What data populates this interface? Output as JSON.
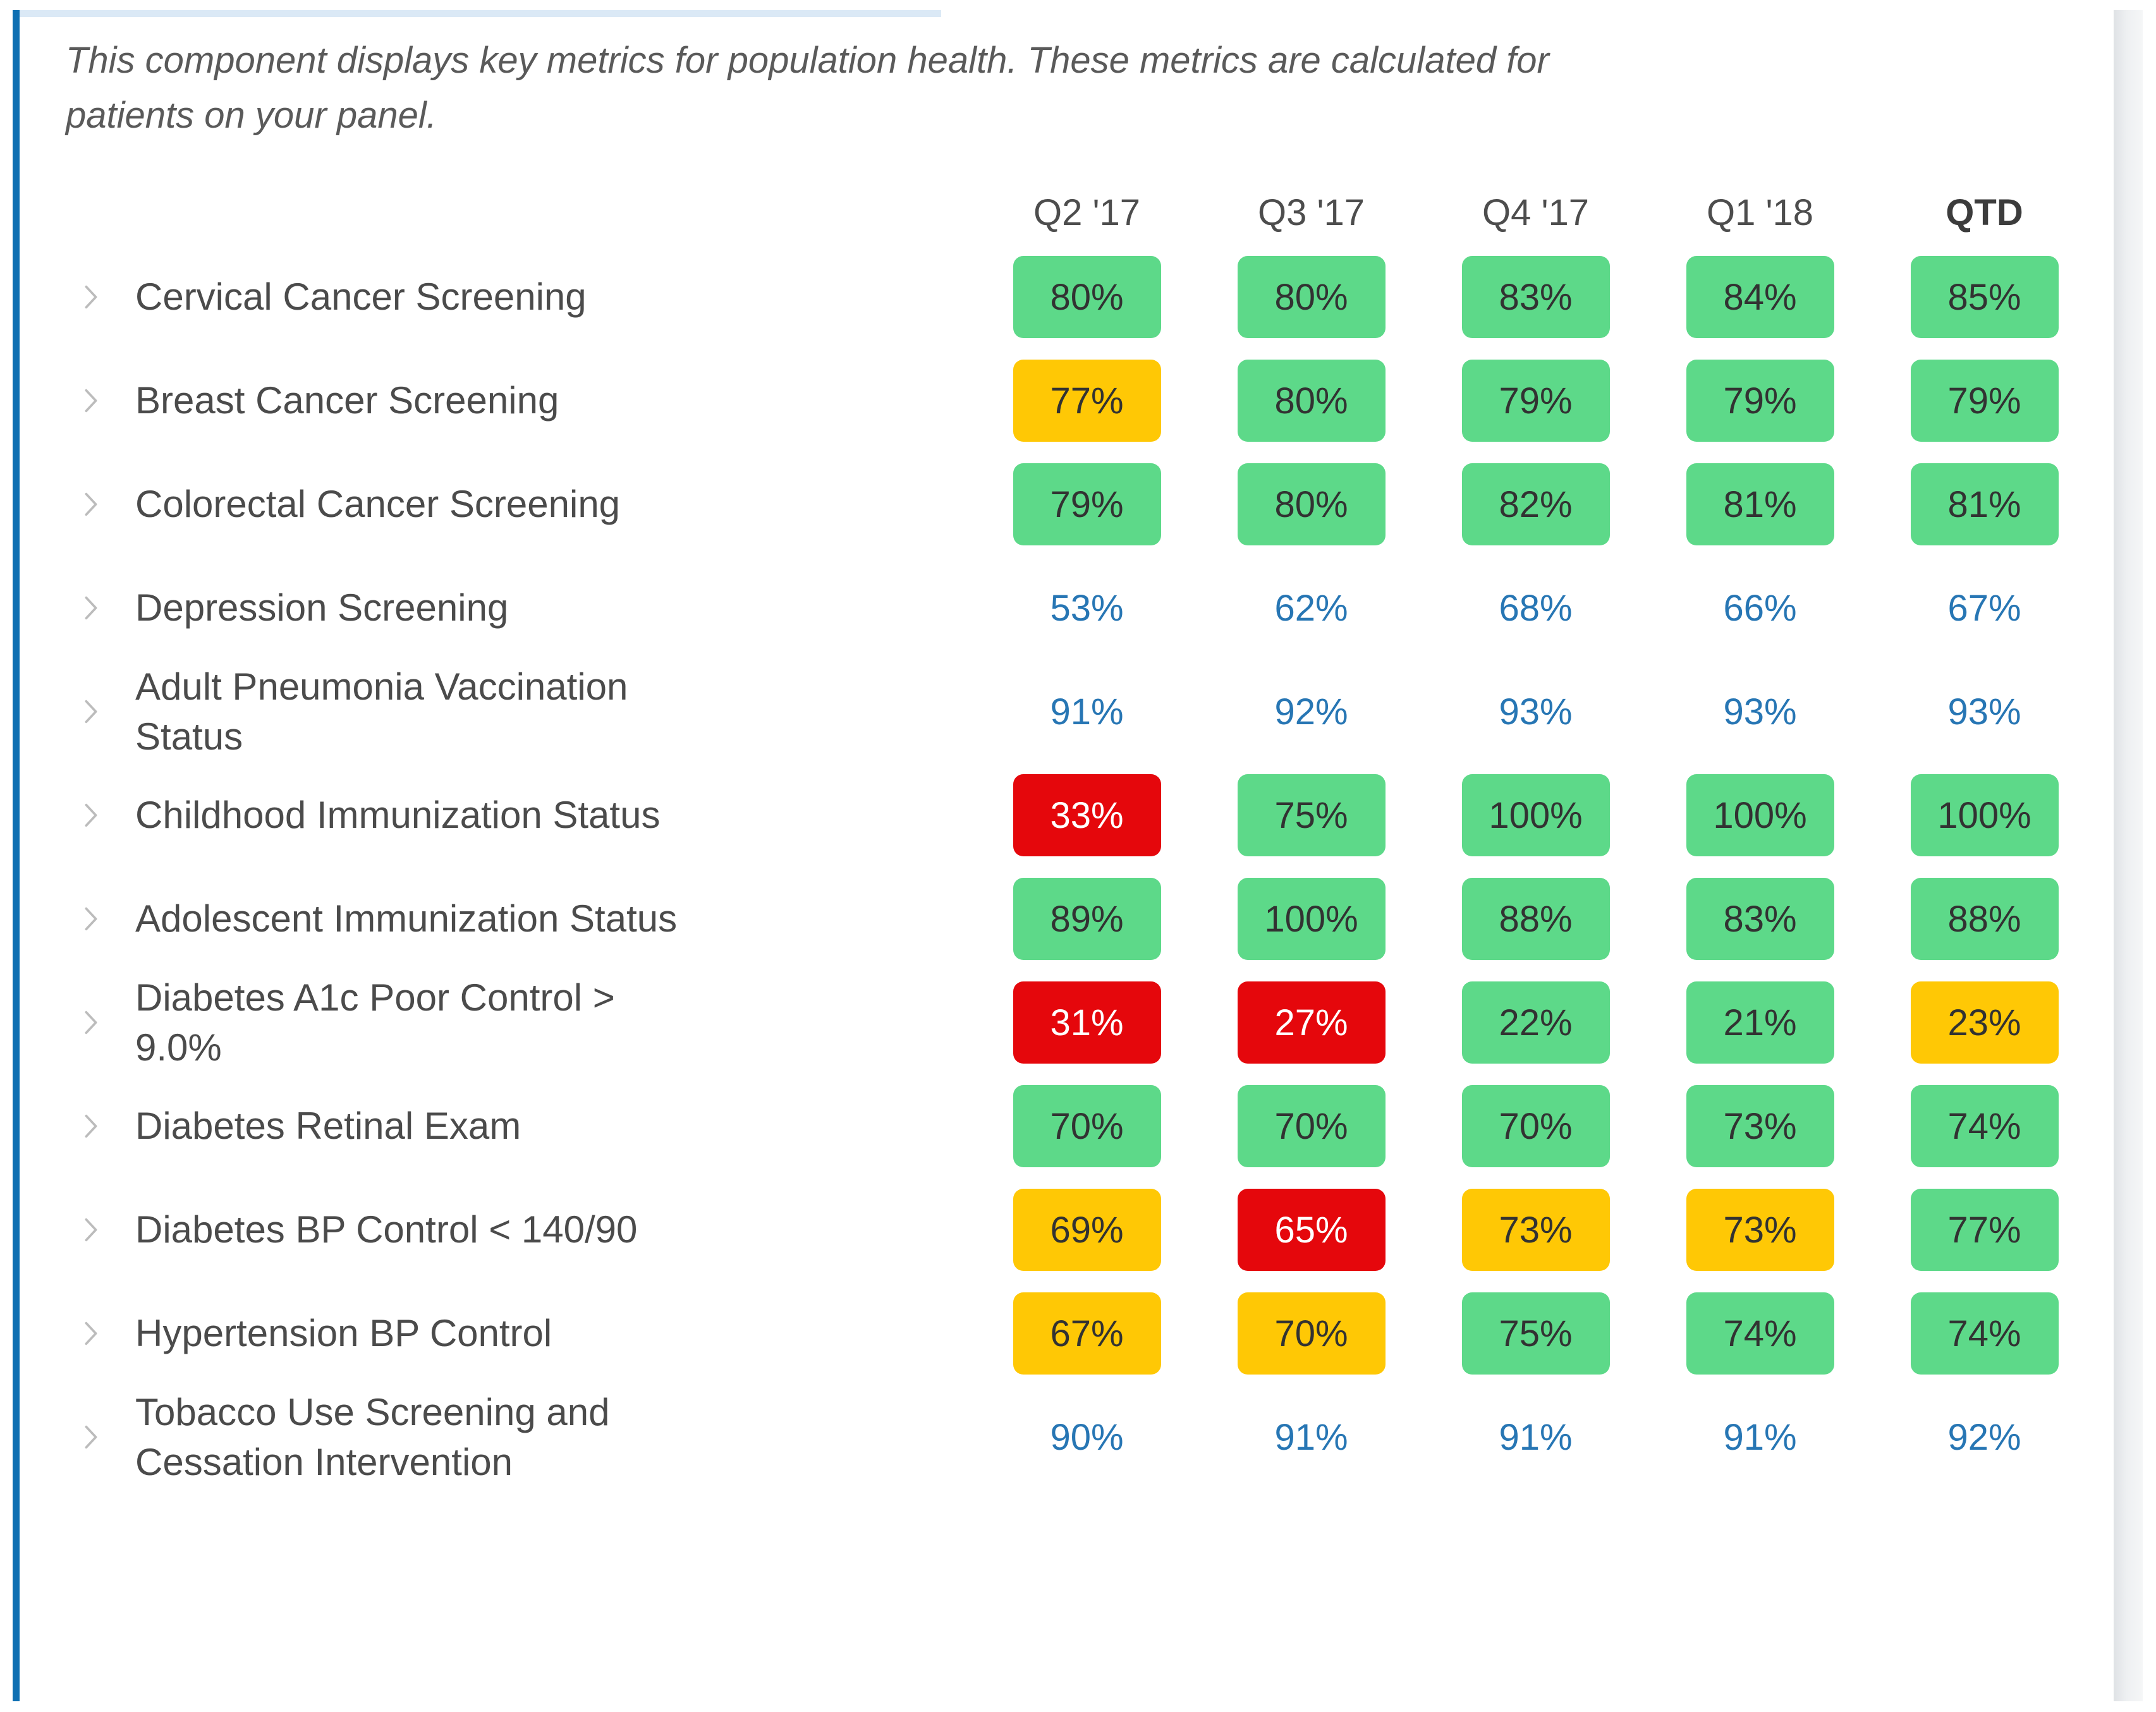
{
  "description": "This component displays key metrics for population health. These metrics are calculated for\npatients on your panel.",
  "columns": [
    {
      "label": "Q2 '17",
      "bold": false
    },
    {
      "label": "Q3 '17",
      "bold": false
    },
    {
      "label": "Q4 '17",
      "bold": false
    },
    {
      "label": "Q1 '18",
      "bold": false
    },
    {
      "label": "QTD",
      "bold": true
    }
  ],
  "rows": [
    {
      "label": "Cervical Cancer Screening",
      "values": [
        {
          "text": "80%",
          "style": "green"
        },
        {
          "text": "80%",
          "style": "green"
        },
        {
          "text": "83%",
          "style": "green"
        },
        {
          "text": "84%",
          "style": "green"
        },
        {
          "text": "85%",
          "style": "green"
        }
      ]
    },
    {
      "label": "Breast Cancer Screening",
      "values": [
        {
          "text": "77%",
          "style": "yellow"
        },
        {
          "text": "80%",
          "style": "green"
        },
        {
          "text": "79%",
          "style": "green"
        },
        {
          "text": "79%",
          "style": "green"
        },
        {
          "text": "79%",
          "style": "green"
        }
      ]
    },
    {
      "label": "Colorectal Cancer Screening",
      "values": [
        {
          "text": "79%",
          "style": "green"
        },
        {
          "text": "80%",
          "style": "green"
        },
        {
          "text": "82%",
          "style": "green"
        },
        {
          "text": "81%",
          "style": "green"
        },
        {
          "text": "81%",
          "style": "green"
        }
      ]
    },
    {
      "label": "Depression Screening",
      "values": [
        {
          "text": "53%",
          "style": "plain"
        },
        {
          "text": "62%",
          "style": "plain"
        },
        {
          "text": "68%",
          "style": "plain"
        },
        {
          "text": "66%",
          "style": "plain"
        },
        {
          "text": "67%",
          "style": "plain"
        }
      ]
    },
    {
      "label": "Adult Pneumonia Vaccination\nStatus",
      "values": [
        {
          "text": "91%",
          "style": "plain"
        },
        {
          "text": "92%",
          "style": "plain"
        },
        {
          "text": "93%",
          "style": "plain"
        },
        {
          "text": "93%",
          "style": "plain"
        },
        {
          "text": "93%",
          "style": "plain"
        }
      ]
    },
    {
      "label": "Childhood Immunization Status",
      "values": [
        {
          "text": "33%",
          "style": "red"
        },
        {
          "text": "75%",
          "style": "green"
        },
        {
          "text": "100%",
          "style": "green"
        },
        {
          "text": "100%",
          "style": "green"
        },
        {
          "text": "100%",
          "style": "green"
        }
      ]
    },
    {
      "label": "Adolescent Immunization Status",
      "values": [
        {
          "text": "89%",
          "style": "green"
        },
        {
          "text": "100%",
          "style": "green"
        },
        {
          "text": "88%",
          "style": "green"
        },
        {
          "text": "83%",
          "style": "green"
        },
        {
          "text": "88%",
          "style": "green"
        }
      ]
    },
    {
      "label": "Diabetes A1c Poor Control >\n9.0%",
      "values": [
        {
          "text": "31%",
          "style": "red"
        },
        {
          "text": "27%",
          "style": "red"
        },
        {
          "text": "22%",
          "style": "green"
        },
        {
          "text": "21%",
          "style": "green"
        },
        {
          "text": "23%",
          "style": "yellow"
        }
      ]
    },
    {
      "label": "Diabetes Retinal Exam",
      "values": [
        {
          "text": "70%",
          "style": "green"
        },
        {
          "text": "70%",
          "style": "green"
        },
        {
          "text": "70%",
          "style": "green"
        },
        {
          "text": "73%",
          "style": "green"
        },
        {
          "text": "74%",
          "style": "green"
        }
      ]
    },
    {
      "label": "Diabetes BP Control < 140/90",
      "values": [
        {
          "text": "69%",
          "style": "yellow"
        },
        {
          "text": "65%",
          "style": "red"
        },
        {
          "text": "73%",
          "style": "yellow"
        },
        {
          "text": "73%",
          "style": "yellow"
        },
        {
          "text": "77%",
          "style": "green"
        }
      ]
    },
    {
      "label": "Hypertension BP Control",
      "values": [
        {
          "text": "67%",
          "style": "yellow"
        },
        {
          "text": "70%",
          "style": "yellow"
        },
        {
          "text": "75%",
          "style": "green"
        },
        {
          "text": "74%",
          "style": "green"
        },
        {
          "text": "74%",
          "style": "green"
        }
      ]
    },
    {
      "label": "Tobacco Use Screening and\nCessation Intervention",
      "values": [
        {
          "text": "90%",
          "style": "plain"
        },
        {
          "text": "91%",
          "style": "plain"
        },
        {
          "text": "91%",
          "style": "plain"
        },
        {
          "text": "91%",
          "style": "plain"
        },
        {
          "text": "92%",
          "style": "plain"
        }
      ]
    }
  ],
  "colors": {
    "green": "#5dd989",
    "yellow": "#ffc805",
    "red": "#e5070c",
    "badge_text_dark": "#323232",
    "badge_text_light": "#ffffff",
    "value_text_blue": "#2776b4",
    "label_text": "#4b4b4b",
    "header_text": "#4d4d4d",
    "header_text_bold": "#3c3c3c",
    "description_text": "#5a5a5a",
    "left_bar": "#0e6fb2",
    "top_bar": "#dbe9f6",
    "chevron": "#bcbcbc"
  }
}
